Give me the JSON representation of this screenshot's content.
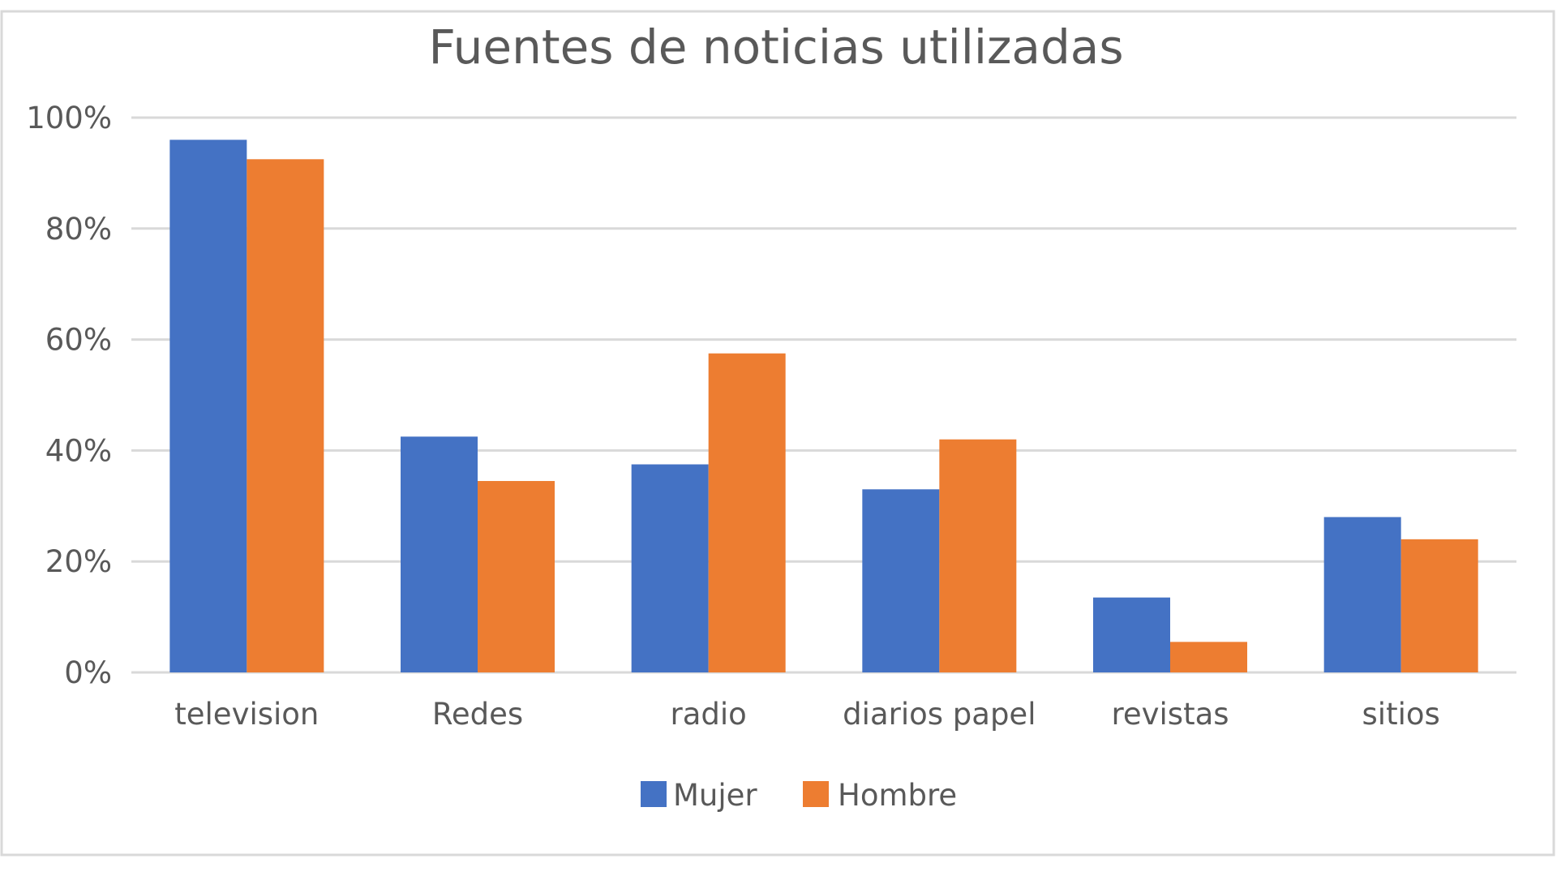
{
  "chart_data": {
    "type": "bar",
    "title": "Fuentes de noticias utilizadas",
    "categories": [
      "television",
      "Redes",
      "radio",
      "diarios papel",
      "revistas",
      "sitios"
    ],
    "series": [
      {
        "name": "Mujer",
        "color": "#4472C4",
        "values": [
          96,
          42.5,
          37.5,
          33,
          13.5,
          28
        ]
      },
      {
        "name": "Hombre",
        "color": "#ED7D31",
        "values": [
          92.5,
          34.5,
          57.5,
          42,
          5.5,
          24
        ]
      }
    ],
    "yticks": [
      "0%",
      "20%",
      "40%",
      "60%",
      "80%",
      "100%"
    ],
    "ylim": [
      0,
      100
    ],
    "grid": true,
    "legend_position": "bottom",
    "gridline_color": "#D9D9D9",
    "frame_color": "#D9D9D9"
  }
}
